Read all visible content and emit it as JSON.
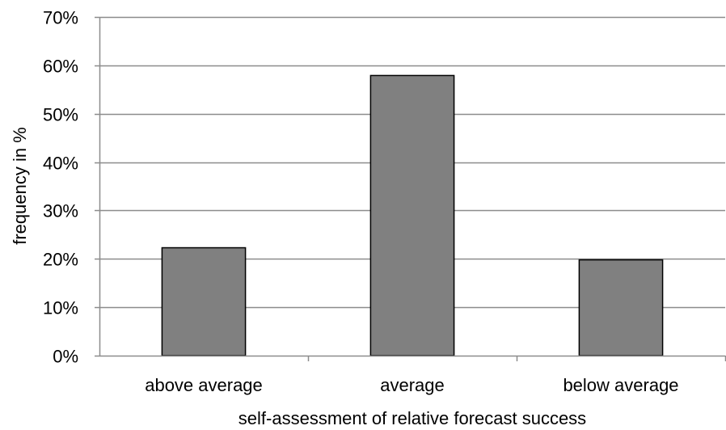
{
  "chart_data": {
    "type": "bar",
    "categories": [
      "above average",
      "average",
      "below average"
    ],
    "values": [
      22.3,
      57.9,
      19.8
    ],
    "xlabel": "self-assessment of relative forecast success",
    "ylabel": "frequency in %",
    "ylim": [
      0,
      70
    ],
    "yticks": [
      "0%",
      "10%",
      "20%",
      "30%",
      "40%",
      "50%",
      "60%",
      "70%"
    ],
    "grid": true,
    "bar_color": "#808080",
    "bar_edge_color": "#000000",
    "grid_color": "#8c8c8c"
  }
}
